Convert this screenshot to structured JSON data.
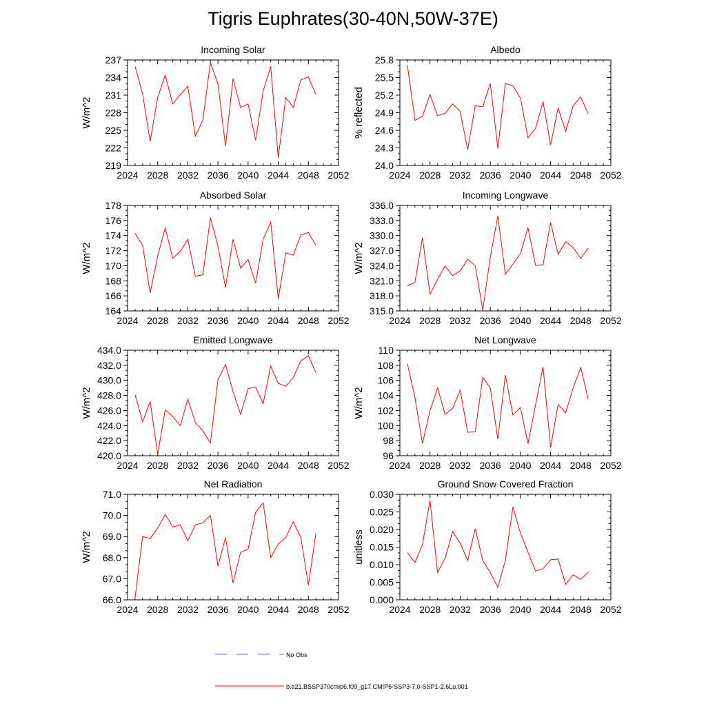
{
  "title": "Tigris Euphrates(30-40N,50W-37E)",
  "legend": {
    "items": [
      {
        "label": "No Obs",
        "color": "#6666cc",
        "style": "dashed"
      },
      {
        "label": "b.e21.BSSP370cmip6.f09_g17.CMIP6-SSP3-7.0-SSP1-2.6Lu.001",
        "color": "#ff0000",
        "style": "solid"
      }
    ]
  },
  "chart_data": [
    {
      "type": "line",
      "title": "Incoming Solar",
      "ylabel": "W/m^2",
      "xlim": [
        2024,
        2052
      ],
      "ylim": [
        219,
        237
      ],
      "xticks": [
        "2024",
        "2028",
        "2032",
        "2036",
        "2040",
        "2044",
        "2048",
        "2052"
      ],
      "yticks": [
        "219",
        "222",
        "225",
        "228",
        "231",
        "234",
        "237"
      ],
      "series": [
        {
          "color": "#ff0000",
          "x": [
            2025,
            2026,
            2027,
            2028,
            2029,
            2030,
            2031,
            2032,
            2033,
            2034,
            2035,
            2036,
            2037,
            2038,
            2039,
            2040,
            2041,
            2042,
            2043,
            2044,
            2045,
            2046,
            2047,
            2048,
            2049
          ],
          "values": [
            235.9,
            231.2,
            223.1,
            230.6,
            234.4,
            229.5,
            231.1,
            232.5,
            224.0,
            226.8,
            236.6,
            232.9,
            222.3,
            233.8,
            228.9,
            229.5,
            223.3,
            231.7,
            235.9,
            220.3,
            230.6,
            228.9,
            233.6,
            234.1,
            231.1
          ]
        }
      ]
    },
    {
      "type": "line",
      "title": "Albedo",
      "ylabel": "% reflected",
      "xlim": [
        2024,
        2052
      ],
      "ylim": [
        24.0,
        25.8
      ],
      "xticks": [
        "2024",
        "2028",
        "2032",
        "2036",
        "2040",
        "2044",
        "2048",
        "2052"
      ],
      "yticks": [
        "24.0",
        "24.3",
        "24.6",
        "24.9",
        "25.2",
        "25.5",
        "25.8"
      ],
      "series": [
        {
          "color": "#ff0000",
          "x": [
            2025,
            2026,
            2027,
            2028,
            2029,
            2030,
            2031,
            2032,
            2033,
            2034,
            2035,
            2036,
            2037,
            2038,
            2039,
            2040,
            2041,
            2042,
            2043,
            2044,
            2045,
            2046,
            2047,
            2048,
            2049
          ],
          "values": [
            25.71,
            24.77,
            24.84,
            25.21,
            24.85,
            24.89,
            25.05,
            24.92,
            24.27,
            25.02,
            25.0,
            25.4,
            24.29,
            25.4,
            25.36,
            25.15,
            24.47,
            24.63,
            25.09,
            24.35,
            24.98,
            24.58,
            25.02,
            25.17,
            24.88
          ]
        }
      ]
    },
    {
      "type": "line",
      "title": "Absorbed Solar",
      "ylabel": "W/m^2",
      "xlim": [
        2024,
        2052
      ],
      "ylim": [
        164,
        178
      ],
      "xticks": [
        "2024",
        "2028",
        "2032",
        "2036",
        "2040",
        "2044",
        "2048",
        "2052"
      ],
      "yticks": [
        "164",
        "166",
        "168",
        "170",
        "172",
        "174",
        "176",
        "178"
      ],
      "series": [
        {
          "color": "#ff0000",
          "x": [
            2025,
            2026,
            2027,
            2028,
            2029,
            2030,
            2031,
            2032,
            2033,
            2034,
            2035,
            2036,
            2037,
            2038,
            2039,
            2040,
            2041,
            2042,
            2043,
            2044,
            2045,
            2046,
            2047,
            2048,
            2049
          ],
          "values": [
            174.3,
            172.7,
            166.4,
            171.3,
            175.0,
            171.0,
            171.9,
            173.5,
            168.6,
            168.8,
            176.4,
            172.6,
            167.1,
            173.5,
            169.7,
            170.8,
            167.7,
            173.5,
            175.8,
            165.6,
            171.7,
            171.4,
            174.1,
            174.4,
            172.7
          ]
        }
      ]
    },
    {
      "type": "line",
      "title": "Incoming Longwave",
      "ylabel": "W/m^2",
      "xlim": [
        2024,
        2052
      ],
      "ylim": [
        315.0,
        336.0
      ],
      "xticks": [
        "2024",
        "2028",
        "2032",
        "2036",
        "2040",
        "2044",
        "2048",
        "2052"
      ],
      "yticks": [
        "315.0",
        "318.0",
        "321.0",
        "324.0",
        "327.0",
        "330.0",
        "333.0",
        "336.0"
      ],
      "series": [
        {
          "color": "#ff0000",
          "x": [
            2025,
            2026,
            2027,
            2028,
            2029,
            2030,
            2031,
            2032,
            2033,
            2034,
            2035,
            2036,
            2037,
            2038,
            2039,
            2040,
            2041,
            2042,
            2043,
            2044,
            2045,
            2046,
            2047,
            2048,
            2049
          ],
          "values": [
            320.0,
            320.7,
            329.6,
            318.3,
            321.3,
            323.9,
            322.0,
            323.0,
            325.3,
            324.0,
            315.2,
            325.7,
            333.9,
            322.3,
            324.3,
            326.4,
            331.6,
            324.1,
            324.2,
            332.6,
            326.3,
            328.8,
            327.6,
            325.5,
            327.5
          ]
        }
      ]
    },
    {
      "type": "line",
      "title": "Emitted Longwave",
      "ylabel": "W/m^2",
      "xlim": [
        2024,
        2052
      ],
      "ylim": [
        420.0,
        434.0
      ],
      "xticks": [
        "2024",
        "2028",
        "2032",
        "2036",
        "2040",
        "2044",
        "2048",
        "2052"
      ],
      "yticks": [
        "420.0",
        "422.0",
        "424.0",
        "426.0",
        "428.0",
        "430.0",
        "432.0",
        "434.0"
      ],
      "series": [
        {
          "color": "#ff0000",
          "x": [
            2025,
            2026,
            2027,
            2028,
            2029,
            2030,
            2031,
            2032,
            2033,
            2034,
            2035,
            2036,
            2037,
            2038,
            2039,
            2040,
            2041,
            2042,
            2043,
            2044,
            2045,
            2046,
            2047,
            2048,
            2049
          ],
          "values": [
            428.1,
            424.5,
            427.2,
            420.2,
            426.1,
            425.2,
            424.0,
            427.5,
            424.4,
            423.3,
            421.7,
            430.1,
            432.1,
            428.5,
            425.5,
            428.9,
            429.1,
            426.9,
            431.9,
            429.6,
            429.2,
            430.4,
            432.6,
            433.3,
            431.0
          ]
        }
      ]
    },
    {
      "type": "line",
      "title": "Net Longwave",
      "ylabel": "W/m^2",
      "xlim": [
        2024,
        2052
      ],
      "ylim": [
        96,
        110
      ],
      "xticks": [
        "2024",
        "2028",
        "2032",
        "2036",
        "2040",
        "2044",
        "2048",
        "2052"
      ],
      "yticks": [
        "96",
        "98",
        "100",
        "102",
        "104",
        "106",
        "108",
        "110"
      ],
      "series": [
        {
          "color": "#ff0000",
          "x": [
            2025,
            2026,
            2027,
            2028,
            2029,
            2030,
            2031,
            2032,
            2033,
            2034,
            2035,
            2036,
            2037,
            2038,
            2039,
            2040,
            2041,
            2042,
            2043,
            2044,
            2045,
            2046,
            2047,
            2048,
            2049
          ],
          "values": [
            108.2,
            103.7,
            97.6,
            102.0,
            105.0,
            101.5,
            102.3,
            104.7,
            99.1,
            99.2,
            106.4,
            105.0,
            98.2,
            106.7,
            101.4,
            102.4,
            97.6,
            102.7,
            107.8,
            97.1,
            102.8,
            101.7,
            105.0,
            107.7,
            103.5
          ]
        }
      ]
    },
    {
      "type": "line",
      "title": "Net Radiation",
      "ylabel": "W/m^2",
      "xlim": [
        2024,
        2052
      ],
      "ylim": [
        66.0,
        71.0
      ],
      "xticks": [
        "2024",
        "2028",
        "2032",
        "2036",
        "2040",
        "2044",
        "2048",
        "2052"
      ],
      "yticks": [
        "66.0",
        "67.0",
        "68.0",
        "69.0",
        "70.0",
        "71.0"
      ],
      "series": [
        {
          "color": "#ff0000",
          "x": [
            2025,
            2026,
            2027,
            2028,
            2029,
            2030,
            2031,
            2032,
            2033,
            2034,
            2035,
            2036,
            2037,
            2038,
            2039,
            2040,
            2041,
            2042,
            2043,
            2044,
            2045,
            2046,
            2047,
            2048,
            2049
          ],
          "values": [
            66.1,
            69.0,
            68.9,
            69.4,
            70.05,
            69.45,
            69.55,
            68.8,
            69.55,
            69.65,
            70.0,
            67.6,
            68.95,
            66.8,
            68.25,
            68.4,
            70.15,
            70.6,
            68.0,
            68.65,
            68.95,
            69.7,
            68.95,
            66.7,
            69.15
          ]
        }
      ]
    },
    {
      "type": "line",
      "title": "Ground Snow Covered Fraction",
      "ylabel": "unitless",
      "xlim": [
        2024,
        2052
      ],
      "ylim": [
        0.0,
        0.03
      ],
      "xticks": [
        "2024",
        "2028",
        "2032",
        "2036",
        "2040",
        "2044",
        "2048",
        "2052"
      ],
      "yticks": [
        "0.000",
        "0.005",
        "0.010",
        "0.015",
        "0.020",
        "0.025",
        "0.030"
      ],
      "series": [
        {
          "color": "#ff0000",
          "x": [
            2025,
            2026,
            2027,
            2028,
            2029,
            2030,
            2031,
            2032,
            2033,
            2034,
            2035,
            2036,
            2037,
            2038,
            2039,
            2040,
            2041,
            2042,
            2043,
            2044,
            2045,
            2046,
            2047,
            2048,
            2049
          ],
          "values": [
            0.0134,
            0.0106,
            0.0157,
            0.0283,
            0.0077,
            0.0118,
            0.0194,
            0.0161,
            0.0112,
            0.0202,
            0.0112,
            0.0077,
            0.0036,
            0.0112,
            0.0264,
            0.019,
            0.0136,
            0.0082,
            0.0088,
            0.0114,
            0.0116,
            0.0044,
            0.0071,
            0.0058,
            0.0079
          ]
        }
      ]
    }
  ]
}
